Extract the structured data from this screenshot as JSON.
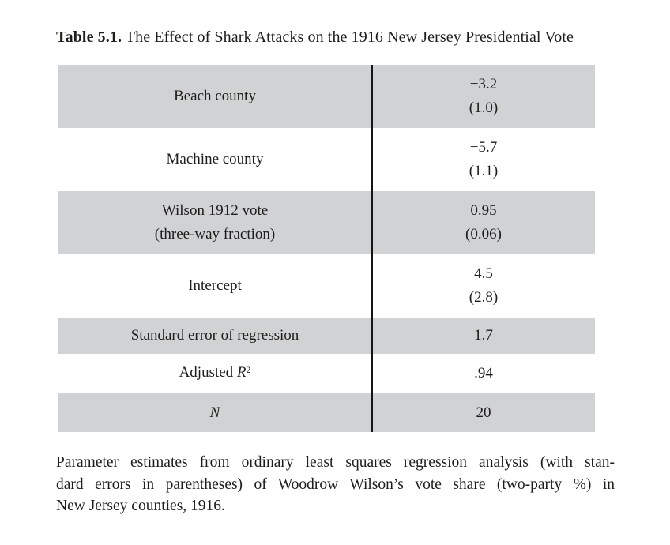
{
  "caption": {
    "label": "Table 5.1.",
    "text": " The Effect of Shark Attacks on the 1916 New Jersey Presidential Vote"
  },
  "table": {
    "shaded_row_color": "#d1d2d4",
    "rows": [
      {
        "shaded": true,
        "label_lines": [
          [
            {
              "text": "Beach county"
            }
          ]
        ],
        "value_lines": [
          "−3.2",
          "(1.0)"
        ]
      },
      {
        "shaded": false,
        "label_lines": [
          [
            {
              "text": "Machine county"
            }
          ]
        ],
        "value_lines": [
          "−5.7",
          "(1.1)"
        ]
      },
      {
        "shaded": true,
        "label_lines": [
          [
            {
              "text": "Wilson 1912 vote"
            }
          ],
          [
            {
              "text": "(three-way fraction)"
            }
          ]
        ],
        "value_lines": [
          "0.95",
          "(0.06)"
        ]
      },
      {
        "shaded": false,
        "label_lines": [
          [
            {
              "text": "Intercept"
            }
          ]
        ],
        "value_lines": [
          "4.5",
          "(2.8)"
        ]
      },
      {
        "shaded": true,
        "label_lines": [
          [
            {
              "text": "Standard error of regression"
            }
          ]
        ],
        "value_lines": [
          "1.7"
        ]
      },
      {
        "shaded": false,
        "label_lines": [
          [
            {
              "text": "Adjusted "
            },
            {
              "text": "R",
              "style": "italic"
            },
            {
              "text": "2",
              "style": "sup"
            }
          ]
        ],
        "value_lines": [
          ".94"
        ]
      },
      {
        "shaded": true,
        "label_lines": [
          [
            {
              "text": "N",
              "style": "italic"
            }
          ]
        ],
        "value_lines": [
          "20"
        ]
      }
    ]
  },
  "footnote": {
    "lines": [
      "Parameter estimates from ordinary least squares regression analysis (with stan-",
      "dard errors in parentheses) of Woodrow Wilson’s vote share (two-party %) in",
      "New Jersey counties, 1916."
    ]
  }
}
